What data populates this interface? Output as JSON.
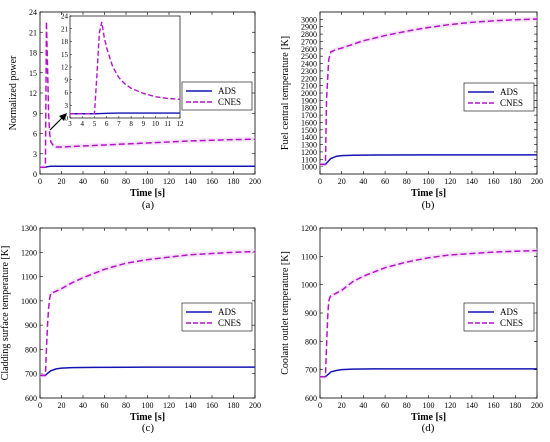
{
  "colors": {
    "ads": "#1414b4",
    "cnes": "#b414c8",
    "band": "#f0d2f5",
    "axis": "#000000"
  },
  "chart_data": [
    {
      "type": "line",
      "panel": "(a)",
      "xlabel": "Time [s]",
      "ylabel": "Normalized power",
      "xlim": [
        0,
        200
      ],
      "ylim": [
        0,
        24
      ],
      "xticks": [
        "0",
        "20",
        "40",
        "60",
        "80",
        "100",
        "120",
        "140",
        "160",
        "180",
        "200"
      ],
      "yticks": [
        "0",
        "3",
        "6",
        "9",
        "12",
        "15",
        "18",
        "21",
        "24"
      ],
      "legend": {
        "position": "right-middle"
      },
      "series": [
        {
          "name": "ADS",
          "x": [
            0,
            5,
            6,
            8,
            10,
            15,
            20,
            50,
            100,
            150,
            200
          ],
          "y": [
            1,
            1,
            1.05,
            1.1,
            1.15,
            1.15,
            1.15,
            1.15,
            1.15,
            1.15,
            1.15
          ]
        },
        {
          "name": "CNES",
          "x": [
            0,
            5,
            5.5,
            6,
            7,
            8,
            9,
            10,
            12,
            15,
            20,
            40,
            60,
            80,
            100,
            120,
            140,
            160,
            180,
            200
          ],
          "y": [
            1,
            1,
            11,
            22.6,
            16,
            9,
            6,
            4.8,
            4.3,
            4.0,
            4.0,
            4.15,
            4.3,
            4.45,
            4.6,
            4.75,
            4.9,
            5.0,
            5.1,
            5.15
          ]
        }
      ],
      "inset": {
        "xlim": [
          3,
          12
        ],
        "ylim": [
          0,
          24
        ],
        "xticks": [
          "3",
          "4",
          "5",
          "6",
          "7",
          "8",
          "9",
          "10",
          "11",
          "12"
        ],
        "yticks": [
          "0",
          "3",
          "6",
          "9",
          "12",
          "15",
          "18",
          "21",
          "24"
        ],
        "series": [
          {
            "name": "ADS",
            "x": [
              3,
              5,
              5.5,
              6,
              7,
              8,
              9,
              10,
              11,
              12
            ],
            "y": [
              1,
              1,
              1.05,
              1.1,
              1.15,
              1.15,
              1.15,
              1.15,
              1.15,
              1.15
            ]
          },
          {
            "name": "CNES",
            "x": [
              3,
              5,
              5.2,
              5.4,
              5.6,
              5.8,
              6,
              6.5,
              7,
              7.5,
              8,
              9,
              10,
              11,
              12
            ],
            "y": [
              1,
              1,
              10,
              20,
              22.6,
              19,
              16.5,
              12,
              9.5,
              8,
              7,
              5.8,
              5.0,
              4.6,
              4.4
            ]
          }
        ]
      }
    },
    {
      "type": "line",
      "panel": "(b)",
      "xlabel": "Time [s]",
      "ylabel": "Fuel central temperature [K]",
      "xlim": [
        0,
        200
      ],
      "ylim": [
        900,
        3100
      ],
      "xticks": [
        "0",
        "20",
        "40",
        "60",
        "80",
        "100",
        "120",
        "140",
        "160",
        "180",
        "200"
      ],
      "yticks": [
        "900",
        "1000",
        "1100",
        "1200",
        "1300",
        "1400",
        "1500",
        "1600",
        "1700",
        "1800",
        "1900",
        "2000",
        "2100",
        "2200",
        "2300",
        "2400",
        "2500",
        "2600",
        "2700",
        "2800",
        "2900",
        "3000"
      ],
      "legend": {
        "position": "right-middle"
      },
      "series": [
        {
          "name": "ADS",
          "x": [
            0,
            5,
            8,
            10,
            15,
            20,
            30,
            50,
            100,
            150,
            200
          ],
          "y": [
            1030,
            1030,
            1080,
            1110,
            1140,
            1150,
            1155,
            1158,
            1160,
            1160,
            1160
          ]
        },
        {
          "name": "CNES",
          "x": [
            0,
            5,
            6,
            8,
            10,
            15,
            20,
            30,
            40,
            60,
            80,
            100,
            120,
            140,
            160,
            180,
            200
          ],
          "y": [
            1030,
            1030,
            1900,
            2450,
            2560,
            2590,
            2610,
            2660,
            2710,
            2780,
            2840,
            2890,
            2930,
            2960,
            2980,
            2995,
            3005
          ]
        }
      ]
    },
    {
      "type": "line",
      "panel": "(c)",
      "xlabel": "Time [s]",
      "ylabel": "Cladding surface temperature [K]",
      "xlim": [
        0,
        200
      ],
      "ylim": [
        600,
        1300
      ],
      "xticks": [
        "0",
        "20",
        "40",
        "60",
        "80",
        "100",
        "120",
        "140",
        "160",
        "180",
        "200"
      ],
      "yticks": [
        "600",
        "700",
        "800",
        "900",
        "1000",
        "1100",
        "1200",
        "1300"
      ],
      "legend": {
        "position": "right-middle"
      },
      "series": [
        {
          "name": "ADS",
          "x": [
            0,
            5,
            8,
            10,
            15,
            20,
            30,
            50,
            100,
            150,
            200
          ],
          "y": [
            693,
            693,
            705,
            712,
            720,
            723,
            725,
            726,
            727,
            727,
            727
          ]
        },
        {
          "name": "CNES",
          "x": [
            0,
            5,
            6,
            7,
            8,
            9,
            10,
            15,
            20,
            30,
            40,
            60,
            80,
            100,
            120,
            140,
            160,
            180,
            200
          ],
          "y": [
            693,
            693,
            800,
            900,
            970,
            1010,
            1030,
            1040,
            1050,
            1075,
            1095,
            1130,
            1155,
            1170,
            1180,
            1190,
            1195,
            1200,
            1203
          ]
        }
      ]
    },
    {
      "type": "line",
      "panel": "(d)",
      "xlabel": "Time [s]",
      "ylabel": "Coolant outlet temperature [K]",
      "xlim": [
        0,
        200
      ],
      "ylim": [
        600,
        1200
      ],
      "xticks": [
        "0",
        "20",
        "40",
        "60",
        "80",
        "100",
        "120",
        "140",
        "160",
        "180",
        "200"
      ],
      "yticks": [
        "600",
        "700",
        "800",
        "900",
        "1000",
        "1100",
        "1200"
      ],
      "legend": {
        "position": "right-middle"
      },
      "series": [
        {
          "name": "ADS",
          "x": [
            0,
            5,
            8,
            10,
            15,
            20,
            30,
            50,
            100,
            150,
            200
          ],
          "y": [
            675,
            675,
            685,
            692,
            697,
            700,
            702,
            703,
            703,
            703,
            703
          ]
        },
        {
          "name": "CNES",
          "x": [
            0,
            5,
            6,
            7,
            8,
            9,
            10,
            15,
            20,
            30,
            40,
            60,
            80,
            100,
            120,
            140,
            160,
            180,
            200
          ],
          "y": [
            675,
            675,
            780,
            880,
            940,
            955,
            960,
            970,
            980,
            1010,
            1030,
            1060,
            1080,
            1095,
            1105,
            1110,
            1115,
            1118,
            1120
          ]
        }
      ]
    }
  ]
}
